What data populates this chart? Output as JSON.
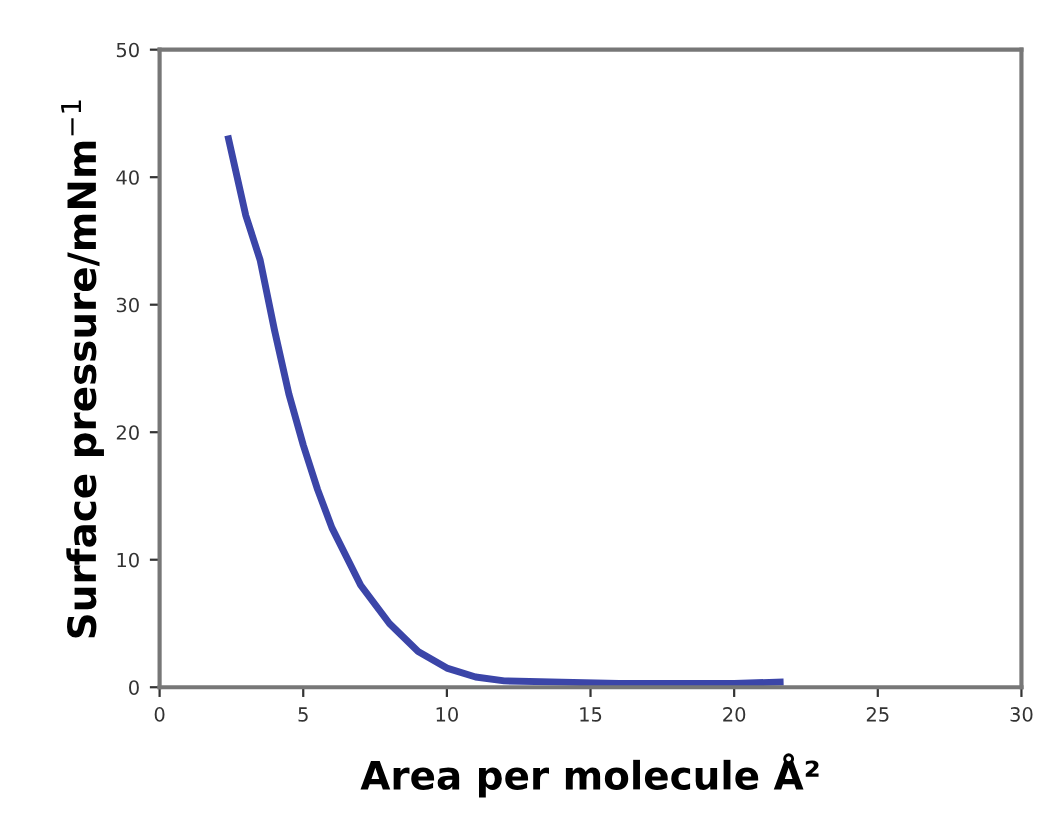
{
  "chart_data": {
    "type": "line",
    "xlabel": "Area per molecule Å²",
    "ylabel": "Surface pressure/mNm$^{−1}$",
    "series": [
      {
        "color": "#3b45a8",
        "x": [
          2.4,
          3,
          3.5,
          4,
          4.5,
          5,
          5.5,
          6,
          7,
          8,
          9,
          10,
          11,
          12,
          14,
          16,
          18,
          20,
          21.6
        ],
        "values": [
          43,
          37,
          33.5,
          28,
          23,
          19,
          15.5,
          12.5,
          8,
          5,
          2.8,
          1.5,
          0.8,
          0.5,
          0.4,
          0.3,
          0.3,
          0.3,
          0.4
        ]
      }
    ],
    "xlim": [
      0,
      30
    ],
    "xticks": [
      0,
      5,
      10,
      15,
      20,
      25,
      30
    ],
    "ylim": [
      0,
      50
    ],
    "yticks": [
      0,
      10,
      20,
      30,
      40,
      50
    ],
    "grid": false,
    "legend": false,
    "marker": "none",
    "line_style": "solid"
  }
}
